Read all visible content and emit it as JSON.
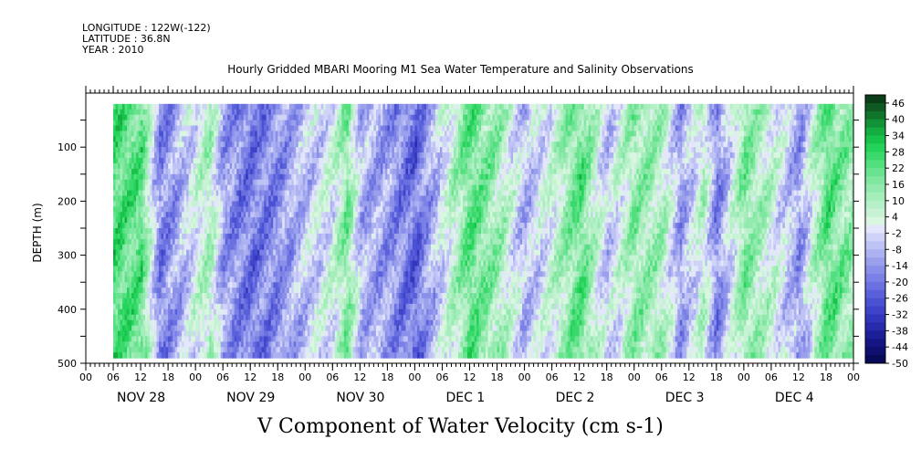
{
  "header": {
    "longitude": "LONGITUDE : 122W(-122)",
    "latitude": "LATITUDE : 36.8N",
    "year": "YEAR : 2010"
  },
  "chart_data": {
    "type": "heatmap",
    "title": "Hourly Gridded MBARI Mooring M1 Sea Water Temperature and Salinity Observations",
    "xlabel": "V Component of Water Velocity (cm s-1)",
    "ylabel": "DEPTH (m)",
    "xlim_hours": [
      0,
      168
    ],
    "ylim": [
      500,
      0
    ],
    "data_depth_range": [
      20,
      490
    ],
    "data_start_hour": 6,
    "y_ticks": [
      100,
      200,
      300,
      400,
      500
    ],
    "y_tick_labels": [
      "100",
      "200",
      "300",
      "400",
      "500"
    ],
    "x_hour_ticks": [
      0,
      6,
      12,
      18,
      24,
      30,
      36,
      42,
      48,
      54,
      60,
      66,
      72,
      78,
      84,
      90,
      96,
      102,
      108,
      114,
      120,
      126,
      132,
      138,
      144,
      150,
      156,
      162,
      168
    ],
    "x_hour_labels": [
      "00",
      "06",
      "12",
      "18",
      "00",
      "06",
      "12",
      "18",
      "00",
      "06",
      "12",
      "18",
      "00",
      "06",
      "12",
      "18",
      "00",
      "06",
      "12",
      "18",
      "00",
      "06",
      "12",
      "18",
      "00",
      "06",
      "12",
      "18",
      "00"
    ],
    "day_labels": [
      "NOV 28",
      "NOV 29",
      "NOV 30",
      "DEC  1",
      "DEC  2",
      "DEC  3",
      "DEC  4"
    ],
    "colorbar": {
      "labels": [
        "46",
        "40",
        "34",
        "28",
        "22",
        "16",
        "10",
        "4",
        "-2",
        "-8",
        "-14",
        "-20",
        "-26",
        "-32",
        "-38",
        "-44",
        "-50"
      ],
      "levels": [
        49,
        46,
        43,
        40,
        37,
        34,
        31,
        28,
        25,
        22,
        19,
        16,
        13,
        10,
        7,
        4,
        1,
        -2,
        -5,
        -8,
        -11,
        -14,
        -17,
        -20,
        -23,
        -26,
        -29,
        -32,
        -35,
        -38,
        -41,
        -44,
        -47,
        -50
      ],
      "colors": [
        "#0a3d18",
        "#0e5a22",
        "#10742b",
        "#129236",
        "#14ad3f",
        "#18c34a",
        "#24d35a",
        "#3ad96c",
        "#52df7e",
        "#69e390",
        "#7fe79f",
        "#93eaae",
        "#a5edbb",
        "#b6f0c8",
        "#c7f3d4",
        "#d8f6e0",
        "#e4e6fb",
        "#d0d3f8",
        "#bec2f5",
        "#acb1f1",
        "#9ba0ed",
        "#8a90e9",
        "#7a80e5",
        "#6a70e0",
        "#5a60da",
        "#4b51d3",
        "#3e43c8",
        "#3236ba",
        "#272aaa",
        "#1d1f98",
        "#151684",
        "#0e0f6e",
        "#080958"
      ]
    },
    "hour_profile": [
      [
        0,
        0.7
      ],
      [
        6,
        1.0
      ],
      [
        12,
        0.9
      ],
      [
        16,
        -0.7
      ],
      [
        20,
        -0.4
      ],
      [
        24,
        0.1
      ],
      [
        27,
        0.4
      ],
      [
        30,
        -0.5
      ],
      [
        36,
        -0.8
      ],
      [
        42,
        -0.6
      ],
      [
        48,
        -0.2
      ],
      [
        54,
        0.1
      ],
      [
        57,
        0.7
      ],
      [
        60,
        -0.3
      ],
      [
        66,
        -0.5
      ],
      [
        72,
        -0.9
      ],
      [
        78,
        0.0
      ],
      [
        84,
        0.9
      ],
      [
        90,
        0.5
      ],
      [
        96,
        -0.3
      ],
      [
        102,
        0.2
      ],
      [
        108,
        0.9
      ],
      [
        114,
        -0.2
      ],
      [
        120,
        0.6
      ],
      [
        126,
        0.4
      ],
      [
        130,
        -0.5
      ],
      [
        135,
        0.3
      ],
      [
        138,
        -0.7
      ],
      [
        144,
        0.7
      ],
      [
        150,
        0.2
      ],
      [
        156,
        -0.5
      ],
      [
        162,
        0.9
      ],
      [
        168,
        0.5
      ]
    ]
  }
}
